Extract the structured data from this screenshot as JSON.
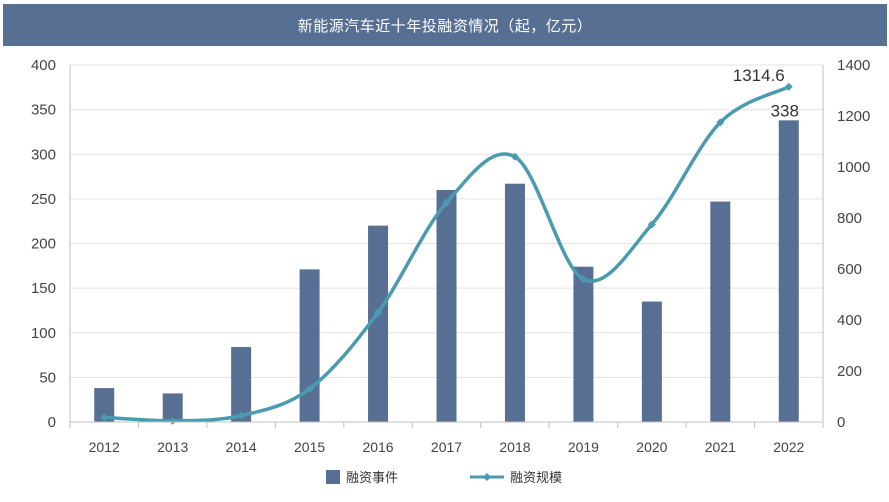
{
  "chart_data": {
    "type": "bar+line",
    "title": "新能源汽车近十年投融资情况（起，亿元）",
    "categories": [
      "2012",
      "2013",
      "2014",
      "2015",
      "2016",
      "2017",
      "2018",
      "2019",
      "2020",
      "2021",
      "2022"
    ],
    "series": [
      {
        "name": "融资事件",
        "type": "bar",
        "axis": "left",
        "color": "#586f94",
        "values": [
          38,
          32,
          84,
          171,
          220,
          260,
          267,
          174,
          135,
          247,
          338
        ]
      },
      {
        "name": "融资规模",
        "type": "line",
        "axis": "right",
        "color": "#4a9bb0",
        "values": [
          18,
          5,
          25,
          130,
          430,
          860,
          1040,
          560,
          775,
          1175,
          1314.6
        ]
      }
    ],
    "y_left": {
      "min": 0,
      "max": 400,
      "ticks": [
        "0",
        "50",
        "100",
        "150",
        "200",
        "250",
        "300",
        "350",
        "400"
      ]
    },
    "y_right": {
      "min": 0,
      "max": 1400,
      "ticks": [
        "0",
        "200",
        "400",
        "600",
        "800",
        "1000",
        "1200",
        "1400"
      ]
    },
    "data_labels": [
      {
        "series": "融资规模",
        "category": "2022",
        "text": "1314.6"
      },
      {
        "series": "融资事件",
        "category": "2022",
        "text": "338"
      }
    ],
    "legend": {
      "position": "bottom",
      "items": [
        "融资事件",
        "融资规模"
      ]
    }
  }
}
